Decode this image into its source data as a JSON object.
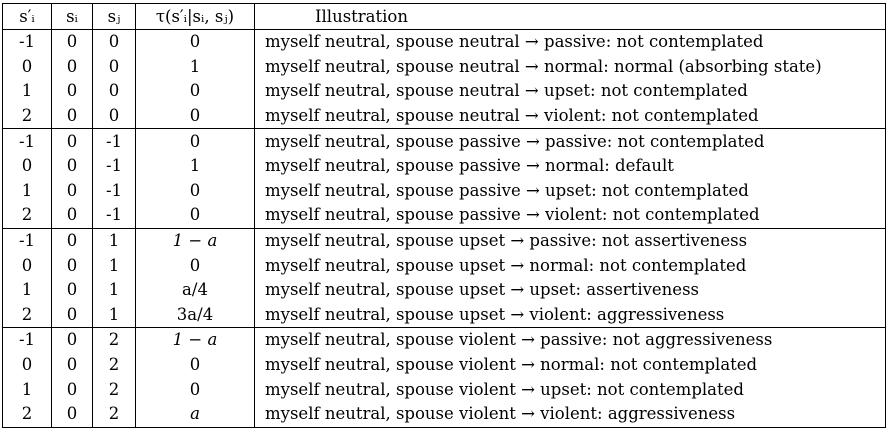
{
  "table": {
    "headers": [
      "s′ᵢ",
      "sᵢ",
      "sⱼ",
      "τ(s′ᵢ|sᵢ, sⱼ)",
      "Illustration"
    ],
    "rows": [
      {
        "sp": "-1",
        "si": "0",
        "sj": "0",
        "tau": "0",
        "text": "myself neutral, spouse neutral → passive: not contemplated"
      },
      {
        "sp": "0",
        "si": "0",
        "sj": "0",
        "tau": "1",
        "text": "myself neutral, spouse neutral → normal: normal (absorbing state)"
      },
      {
        "sp": "1",
        "si": "0",
        "sj": "0",
        "tau": "0",
        "text": "myself neutral, spouse neutral → upset: not contemplated"
      },
      {
        "sp": "2",
        "si": "0",
        "sj": "0",
        "tau": "0",
        "text": "myself neutral, spouse neutral → violent: not contemplated"
      },
      {
        "sp": "-1",
        "si": "0",
        "sj": "-1",
        "tau": "0",
        "text": "myself neutral, spouse passive → passive: not contemplated"
      },
      {
        "sp": "0",
        "si": "0",
        "sj": "-1",
        "tau": "1",
        "text": "myself neutral, spouse passive → normal: default"
      },
      {
        "sp": "1",
        "si": "0",
        "sj": "-1",
        "tau": "0",
        "text": "myself neutral, spouse passive → upset: not contemplated"
      },
      {
        "sp": "2",
        "si": "0",
        "sj": "-1",
        "tau": "0",
        "text": "myself neutral, spouse passive → violent: not contemplated"
      },
      {
        "sp": "-1",
        "si": "0",
        "sj": "1",
        "tau": "1 − a",
        "text": "myself neutral, spouse upset → passive: not assertiveness"
      },
      {
        "sp": "0",
        "si": "0",
        "sj": "1",
        "tau": "0",
        "text": "myself neutral, spouse upset → normal: not contemplated"
      },
      {
        "sp": "1",
        "si": "0",
        "sj": "1",
        "tau": "a/4",
        "text": "myself neutral, spouse upset → upset: assertiveness"
      },
      {
        "sp": "2",
        "si": "0",
        "sj": "1",
        "tau": "3a/4",
        "text": "myself neutral, spouse upset → violent: aggressiveness"
      },
      {
        "sp": "-1",
        "si": "0",
        "sj": "2",
        "tau": "1 − a",
        "text": "myself neutral, spouse violent → passive: not aggressiveness"
      },
      {
        "sp": "0",
        "si": "0",
        "sj": "2",
        "tau": "0",
        "text": "myself neutral, spouse violent → normal: not contemplated"
      },
      {
        "sp": "1",
        "si": "0",
        "sj": "2",
        "tau": "0",
        "text": "myself neutral, spouse violent → upset: not contemplated"
      },
      {
        "sp": "2",
        "si": "0",
        "sj": "2",
        "tau": "a",
        "text": "myself neutral, spouse violent → violent: aggressiveness"
      }
    ]
  }
}
